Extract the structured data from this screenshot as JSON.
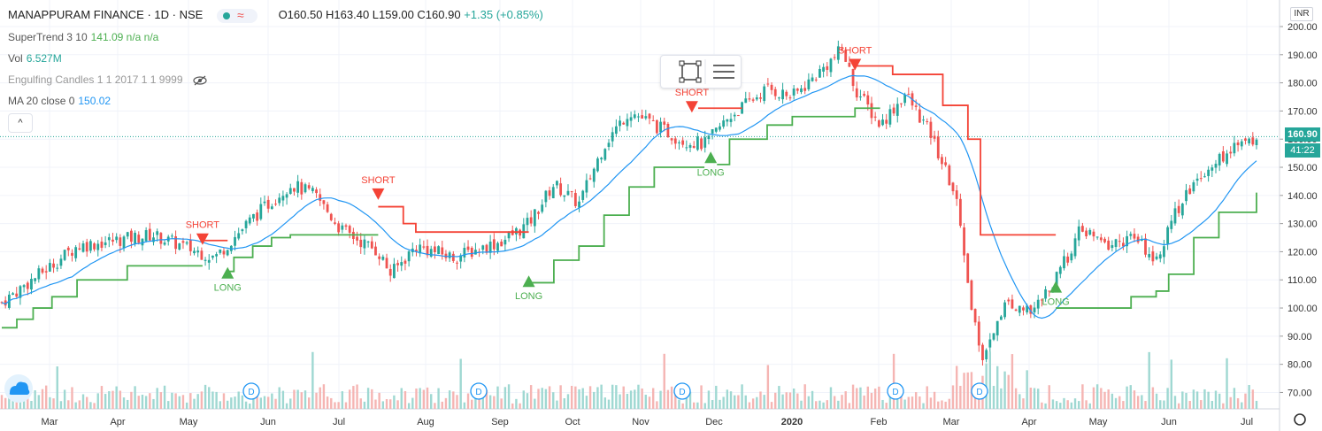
{
  "header": {
    "symbol_title": "MANAPPURAM FINANCE · 1D · NSE",
    "ohlc": "O160.50 H163.40 L159.00 C160.90",
    "change": "+1.35 (+0.85%)"
  },
  "indicators": [
    {
      "name": "SuperTrend 3 10",
      "value": "141.09 n/a n/a"
    },
    {
      "name": "Vol",
      "value": "6.527M"
    },
    {
      "name": "Engulfing Candles 1 1 2017 1 1 9999",
      "value": ""
    },
    {
      "name": "MA 20 close 0",
      "value": "150.02"
    }
  ],
  "toolbar": {
    "collapse_label": "^",
    "currency": "INR"
  },
  "price_tags": {
    "last": "160.90",
    "countdown": "41:22"
  },
  "colors": {
    "up": "#26a69a",
    "down": "#ef5350",
    "supertrend_up": "#4caf50",
    "supertrend_down": "#f44336",
    "ma": "#2196f3"
  },
  "chart_data": {
    "type": "candlestick",
    "y_ticks": [
      "200.00",
      "190.00",
      "180.00",
      "170.00",
      "160.00",
      "150.00",
      "140.00",
      "130.00",
      "120.00",
      "110.00",
      "100.00",
      "90.00",
      "80.00",
      "70.00"
    ],
    "ylim": [
      65,
      203
    ],
    "x_ticks": [
      "Mar",
      "Apr",
      "May",
      "Jun",
      "Jul",
      "Aug",
      "Sep",
      "Oct",
      "Nov",
      "Dec",
      "2020",
      "Feb",
      "Mar",
      "Apr",
      "May",
      "Jun",
      "Jul"
    ],
    "close_series": [
      {
        "t": 0,
        "v": 102
      },
      {
        "t": 0.03,
        "v": 112
      },
      {
        "t": 0.06,
        "v": 122
      },
      {
        "t": 0.09,
        "v": 124
      },
      {
        "t": 0.12,
        "v": 126
      },
      {
        "t": 0.15,
        "v": 121
      },
      {
        "t": 0.17,
        "v": 118
      },
      {
        "t": 0.2,
        "v": 132
      },
      {
        "t": 0.23,
        "v": 144
      },
      {
        "t": 0.25,
        "v": 140
      },
      {
        "t": 0.27,
        "v": 128
      },
      {
        "t": 0.3,
        "v": 120
      },
      {
        "t": 0.31,
        "v": 112
      },
      {
        "t": 0.33,
        "v": 122
      },
      {
        "t": 0.36,
        "v": 118
      },
      {
        "t": 0.4,
        "v": 124
      },
      {
        "t": 0.42,
        "v": 130
      },
      {
        "t": 0.44,
        "v": 144
      },
      {
        "t": 0.46,
        "v": 137
      },
      {
        "t": 0.48,
        "v": 158
      },
      {
        "t": 0.5,
        "v": 170
      },
      {
        "t": 0.52,
        "v": 165
      },
      {
        "t": 0.54,
        "v": 160
      },
      {
        "t": 0.56,
        "v": 158
      },
      {
        "t": 0.58,
        "v": 168
      },
      {
        "t": 0.61,
        "v": 178
      },
      {
        "t": 0.63,
        "v": 175
      },
      {
        "t": 0.65,
        "v": 183
      },
      {
        "t": 0.67,
        "v": 192
      },
      {
        "t": 0.68,
        "v": 178
      },
      {
        "t": 0.7,
        "v": 165
      },
      {
        "t": 0.72,
        "v": 176
      },
      {
        "t": 0.74,
        "v": 162
      },
      {
        "t": 0.76,
        "v": 140
      },
      {
        "t": 0.77,
        "v": 108
      },
      {
        "t": 0.78,
        "v": 82
      },
      {
        "t": 0.8,
        "v": 102
      },
      {
        "t": 0.82,
        "v": 98
      },
      {
        "t": 0.84,
        "v": 110
      },
      {
        "t": 0.86,
        "v": 128
      },
      {
        "t": 0.88,
        "v": 122
      },
      {
        "t": 0.9,
        "v": 125
      },
      {
        "t": 0.92,
        "v": 118
      },
      {
        "t": 0.94,
        "v": 138
      },
      {
        "t": 0.96,
        "v": 150
      },
      {
        "t": 0.98,
        "v": 156
      },
      {
        "t": 1,
        "v": 160.9
      }
    ],
    "annotations": [
      {
        "label": "SHORT",
        "kind": "short",
        "t": 0.16,
        "v": 124
      },
      {
        "label": "LONG",
        "kind": "long",
        "t": 0.18,
        "v": 113
      },
      {
        "label": "SHORT",
        "kind": "short",
        "t": 0.3,
        "v": 140
      },
      {
        "label": "LONG",
        "kind": "long",
        "t": 0.42,
        "v": 110
      },
      {
        "label": "SHORT",
        "kind": "short",
        "t": 0.55,
        "v": 171
      },
      {
        "label": "LONG",
        "kind": "long",
        "t": 0.565,
        "v": 154
      },
      {
        "label": "SHORT",
        "kind": "short",
        "t": 0.68,
        "v": 186
      },
      {
        "label": "LONG",
        "kind": "long",
        "t": 0.84,
        "v": 108
      }
    ],
    "dividend_markers": [
      "D",
      "D",
      "D",
      "D",
      "D"
    ]
  }
}
